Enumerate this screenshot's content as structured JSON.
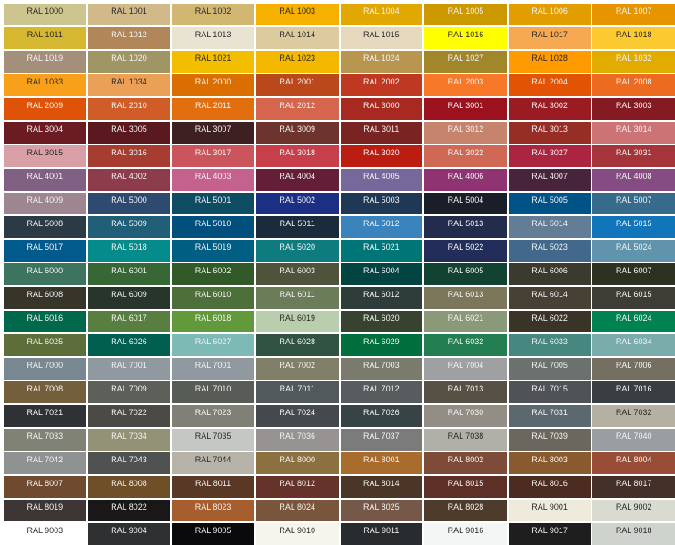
{
  "swatches": [
    {
      "label": "RAL 1000",
      "color": "#CCC58F",
      "text": "dark"
    },
    {
      "label": "RAL 1001",
      "color": "#D1B98A",
      "text": "dark"
    },
    {
      "label": "RAL 1002",
      "color": "#D2B773",
      "text": "dark"
    },
    {
      "label": "RAL 1003",
      "color": "#F6B000",
      "text": "dark"
    },
    {
      "label": "RAL 1004",
      "color": "#E0A800",
      "text": "light"
    },
    {
      "label": "RAL 1005",
      "color": "#CB9800",
      "text": "light"
    },
    {
      "label": "RAL 1006",
      "color": "#E29D00",
      "text": "light"
    },
    {
      "label": "RAL 1007",
      "color": "#E69500",
      "text": "light"
    },
    {
      "label": "RAL 1011",
      "color": "#D6B830",
      "text": "dark"
    },
    {
      "label": "RAL 1012",
      "color": "#B1875A",
      "text": "light"
    },
    {
      "label": "RAL 1013",
      "color": "#E9E3D2",
      "text": "dark"
    },
    {
      "label": "RAL 1014",
      "color": "#DDCBA0",
      "text": "dark"
    },
    {
      "label": "RAL 1015",
      "color": "#E6D9BD",
      "text": "dark"
    },
    {
      "label": "RAL 1016",
      "color": "#FFFF00",
      "text": "dark"
    },
    {
      "label": "RAL 1017",
      "color": "#F6A950",
      "text": "dark"
    },
    {
      "label": "RAL 1018",
      "color": "#FACA30",
      "text": "dark"
    },
    {
      "label": "RAL 1019",
      "color": "#A48F7A",
      "text": "light"
    },
    {
      "label": "RAL 1020",
      "color": "#A09565",
      "text": "light"
    },
    {
      "label": "RAL 1021",
      "color": "#F3BD00",
      "text": "dark"
    },
    {
      "label": "RAL 1023",
      "color": "#F4B800",
      "text": "dark"
    },
    {
      "label": "RAL 1024",
      "color": "#B89650",
      "text": "light"
    },
    {
      "label": "RAL 1027",
      "color": "#A1862A",
      "text": "light"
    },
    {
      "label": "RAL 1028",
      "color": "#FF9B00",
      "text": "dark"
    },
    {
      "label": "RAL 1032",
      "color": "#E1AB00",
      "text": "light"
    },
    {
      "label": "RAL 1033",
      "color": "#F9A01B",
      "text": "dark"
    },
    {
      "label": "RAL 1034",
      "color": "#EBA057",
      "text": "dark"
    },
    {
      "label": "RAL 2000",
      "color": "#DA6E00",
      "text": "light"
    },
    {
      "label": "RAL 2001",
      "color": "#BA481B",
      "text": "light"
    },
    {
      "label": "RAL 2002",
      "color": "#BF3922",
      "text": "light"
    },
    {
      "label": "RAL 2003",
      "color": "#F67828",
      "text": "light"
    },
    {
      "label": "RAL 2004",
      "color": "#E25303",
      "text": "light"
    },
    {
      "label": "RAL 2008",
      "color": "#ED6B21",
      "text": "light"
    },
    {
      "label": "RAL 2009",
      "color": "#DE5307",
      "text": "light"
    },
    {
      "label": "RAL 2010",
      "color": "#D05D28",
      "text": "light"
    },
    {
      "label": "RAL 2011",
      "color": "#E26E0E",
      "text": "light"
    },
    {
      "label": "RAL 2012",
      "color": "#D5654D",
      "text": "light"
    },
    {
      "label": "RAL 3000",
      "color": "#A72920",
      "text": "light"
    },
    {
      "label": "RAL 3001",
      "color": "#9B111E",
      "text": "light"
    },
    {
      "label": "RAL 3002",
      "color": "#9B1B23",
      "text": "light"
    },
    {
      "label": "RAL 3003",
      "color": "#861A22",
      "text": "light"
    },
    {
      "label": "RAL 3004",
      "color": "#6B1C23",
      "text": "light"
    },
    {
      "label": "RAL 3005",
      "color": "#59191F",
      "text": "light"
    },
    {
      "label": "RAL 3007",
      "color": "#3E2022",
      "text": "light"
    },
    {
      "label": "RAL 3009",
      "color": "#6D342D",
      "text": "light"
    },
    {
      "label": "RAL 3011",
      "color": "#792423",
      "text": "light"
    },
    {
      "label": "RAL 3012",
      "color": "#C6846D",
      "text": "light"
    },
    {
      "label": "RAL 3013",
      "color": "#972E25",
      "text": "light"
    },
    {
      "label": "RAL 3014",
      "color": "#CB7375",
      "text": "light"
    },
    {
      "label": "RAL 3015",
      "color": "#D8A0A6",
      "text": "dark"
    },
    {
      "label": "RAL 3016",
      "color": "#A63D30",
      "text": "light"
    },
    {
      "label": "RAL 3017",
      "color": "#CB555D",
      "text": "light"
    },
    {
      "label": "RAL 3018",
      "color": "#C73F4A",
      "text": "light"
    },
    {
      "label": "RAL 3020",
      "color": "#BB1E10",
      "text": "light"
    },
    {
      "label": "RAL 3022",
      "color": "#CF6955",
      "text": "light"
    },
    {
      "label": "RAL 3027",
      "color": "#AB2540",
      "text": "light"
    },
    {
      "label": "RAL 3031",
      "color": "#A6343B",
      "text": "light"
    },
    {
      "label": "RAL 4001",
      "color": "#816183",
      "text": "light"
    },
    {
      "label": "RAL 4002",
      "color": "#8D3C4B",
      "text": "light"
    },
    {
      "label": "RAL 4003",
      "color": "#C4618C",
      "text": "light"
    },
    {
      "label": "RAL 4004",
      "color": "#651E38",
      "text": "light"
    },
    {
      "label": "RAL 4005",
      "color": "#76689A",
      "text": "light"
    },
    {
      "label": "RAL 4006",
      "color": "#903373",
      "text": "light"
    },
    {
      "label": "RAL 4007",
      "color": "#47243C",
      "text": "light"
    },
    {
      "label": "RAL 4008",
      "color": "#844C82",
      "text": "light"
    },
    {
      "label": "RAL 4009",
      "color": "#9D8692",
      "text": "light"
    },
    {
      "label": "RAL 5000",
      "color": "#2F4A71",
      "text": "light"
    },
    {
      "label": "RAL 5001",
      "color": "#0E4C64",
      "text": "light"
    },
    {
      "label": "RAL 5002",
      "color": "#1B2F85",
      "text": "light"
    },
    {
      "label": "RAL 5003",
      "color": "#1F3855",
      "text": "light"
    },
    {
      "label": "RAL 5004",
      "color": "#191E28",
      "text": "light"
    },
    {
      "label": "RAL 5005",
      "color": "#005387",
      "text": "light"
    },
    {
      "label": "RAL 5007",
      "color": "#376B8C",
      "text": "light"
    },
    {
      "label": "RAL 5008",
      "color": "#2B3A44",
      "text": "light"
    },
    {
      "label": "RAL 5009",
      "color": "#215F78",
      "text": "light"
    },
    {
      "label": "RAL 5010",
      "color": "#004F7C",
      "text": "light"
    },
    {
      "label": "RAL 5011",
      "color": "#1A2B3C",
      "text": "light"
    },
    {
      "label": "RAL 5012",
      "color": "#3B83BD",
      "text": "light"
    },
    {
      "label": "RAL 5013",
      "color": "#232C4C",
      "text": "light"
    },
    {
      "label": "RAL 5014",
      "color": "#637D96",
      "text": "light"
    },
    {
      "label": "RAL 5015",
      "color": "#1175BB",
      "text": "light"
    },
    {
      "label": "RAL 5017",
      "color": "#005B8C",
      "text": "light"
    },
    {
      "label": "RAL 5018",
      "color": "#058B8C",
      "text": "light"
    },
    {
      "label": "RAL 5019",
      "color": "#005E83",
      "text": "light"
    },
    {
      "label": "RAL 5020",
      "color": "#0E7B7F",
      "text": "light"
    },
    {
      "label": "RAL 5021",
      "color": "#007577",
      "text": "light"
    },
    {
      "label": "RAL 5022",
      "color": "#222D5A",
      "text": "light"
    },
    {
      "label": "RAL 5023",
      "color": "#42698C",
      "text": "light"
    },
    {
      "label": "RAL 5024",
      "color": "#6093AC",
      "text": "light"
    },
    {
      "label": "RAL 6000",
      "color": "#3C7460",
      "text": "light"
    },
    {
      "label": "RAL 6001",
      "color": "#366735",
      "text": "light"
    },
    {
      "label": "RAL 6002",
      "color": "#325928",
      "text": "light"
    },
    {
      "label": "RAL 6003",
      "color": "#50533C",
      "text": "light"
    },
    {
      "label": "RAL 6004",
      "color": "#024442",
      "text": "light"
    },
    {
      "label": "RAL 6005",
      "color": "#114232",
      "text": "light"
    },
    {
      "label": "RAL 6006",
      "color": "#3C392E",
      "text": "light"
    },
    {
      "label": "RAL 6007",
      "color": "#2C3222",
      "text": "light"
    },
    {
      "label": "RAL 6008",
      "color": "#37342A",
      "text": "light"
    },
    {
      "label": "RAL 6009",
      "color": "#27352A",
      "text": "light"
    },
    {
      "label": "RAL 6010",
      "color": "#4D6F39",
      "text": "light"
    },
    {
      "label": "RAL 6011",
      "color": "#6B7C59",
      "text": "light"
    },
    {
      "label": "RAL 6012",
      "color": "#2F3D3A",
      "text": "light"
    },
    {
      "label": "RAL 6013",
      "color": "#7C765A",
      "text": "light"
    },
    {
      "label": "RAL 6014",
      "color": "#474135",
      "text": "light"
    },
    {
      "label": "RAL 6015",
      "color": "#3D3D36",
      "text": "light"
    },
    {
      "label": "RAL 6016",
      "color": "#00694C",
      "text": "light"
    },
    {
      "label": "RAL 6017",
      "color": "#587F40",
      "text": "light"
    },
    {
      "label": "RAL 6018",
      "color": "#61993B",
      "text": "light"
    },
    {
      "label": "RAL 6019",
      "color": "#B9CEAC",
      "text": "dark"
    },
    {
      "label": "RAL 6020",
      "color": "#37422F",
      "text": "light"
    },
    {
      "label": "RAL 6021",
      "color": "#8A9977",
      "text": "light"
    },
    {
      "label": "RAL 6022",
      "color": "#3A3327",
      "text": "light"
    },
    {
      "label": "RAL 6024",
      "color": "#008351",
      "text": "light"
    },
    {
      "label": "RAL 6025",
      "color": "#5E6E3B",
      "text": "light"
    },
    {
      "label": "RAL 6026",
      "color": "#005F4E",
      "text": "light"
    },
    {
      "label": "RAL 6027",
      "color": "#7EBAB5",
      "text": "light"
    },
    {
      "label": "RAL 6028",
      "color": "#315442",
      "text": "light"
    },
    {
      "label": "RAL 6029",
      "color": "#006F3D",
      "text": "light"
    },
    {
      "label": "RAL 6032",
      "color": "#237F52",
      "text": "light"
    },
    {
      "label": "RAL 6033",
      "color": "#46877F",
      "text": "light"
    },
    {
      "label": "RAL 6034",
      "color": "#7AACAC",
      "text": "light"
    },
    {
      "label": "RAL 7000",
      "color": "#798790",
      "text": "light"
    },
    {
      "label": "RAL 7001",
      "color": "#8F999F",
      "text": "light"
    },
    {
      "label": "RAL 7001",
      "color": "#8F999F",
      "text": "light"
    },
    {
      "label": "RAL 7002",
      "color": "#817F68",
      "text": "light"
    },
    {
      "label": "RAL 7003",
      "color": "#7A7B6D",
      "text": "light"
    },
    {
      "label": "RAL 7004",
      "color": "#9EA0A1",
      "text": "light"
    },
    {
      "label": "RAL 7005",
      "color": "#6B716F",
      "text": "light"
    },
    {
      "label": "RAL 7006",
      "color": "#756F61",
      "text": "light"
    },
    {
      "label": "RAL 7008",
      "color": "#745F3D",
      "text": "light"
    },
    {
      "label": "RAL 7009",
      "color": "#5D6058",
      "text": "light"
    },
    {
      "label": "RAL 7010",
      "color": "#585C56",
      "text": "light"
    },
    {
      "label": "RAL 7011",
      "color": "#52595D",
      "text": "light"
    },
    {
      "label": "RAL 7012",
      "color": "#575D5E",
      "text": "light"
    },
    {
      "label": "RAL 7013",
      "color": "#575044",
      "text": "light"
    },
    {
      "label": "RAL 7015",
      "color": "#4F5358",
      "text": "light"
    },
    {
      "label": "RAL 7016",
      "color": "#383E42",
      "text": "light"
    },
    {
      "label": "RAL 7021",
      "color": "#2F3234",
      "text": "light"
    },
    {
      "label": "RAL 7022",
      "color": "#4C4A44",
      "text": "light"
    },
    {
      "label": "RAL 7023",
      "color": "#808076",
      "text": "light"
    },
    {
      "label": "RAL 7024",
      "color": "#45494E",
      "text": "light"
    },
    {
      "label": "RAL 7026",
      "color": "#374345",
      "text": "light"
    },
    {
      "label": "RAL 7030",
      "color": "#928E85",
      "text": "light"
    },
    {
      "label": "RAL 7031",
      "color": "#5B686D",
      "text": "light"
    },
    {
      "label": "RAL 7032",
      "color": "#B5B0A1",
      "text": "dark"
    },
    {
      "label": "RAL 7033",
      "color": "#7F8274",
      "text": "light"
    },
    {
      "label": "RAL 7034",
      "color": "#939176",
      "text": "light"
    },
    {
      "label": "RAL 7035",
      "color": "#C5C7C4",
      "text": "dark"
    },
    {
      "label": "RAL 7036",
      "color": "#979392",
      "text": "light"
    },
    {
      "label": "RAL 7037",
      "color": "#7A7B7A",
      "text": "light"
    },
    {
      "label": "RAL 7038",
      "color": "#B0B0A9",
      "text": "dark"
    },
    {
      "label": "RAL 7039",
      "color": "#6B665E",
      "text": "light"
    },
    {
      "label": "RAL 7040",
      "color": "#989EA1",
      "text": "light"
    },
    {
      "label": "RAL 7042",
      "color": "#8E9291",
      "text": "light"
    },
    {
      "label": "RAL 7043",
      "color": "#4F5250",
      "text": "light"
    },
    {
      "label": "RAL 7044",
      "color": "#B7B3A8",
      "text": "dark"
    },
    {
      "label": "RAL 8000",
      "color": "#8D7040",
      "text": "light"
    },
    {
      "label": "RAL 8001",
      "color": "#A96C2C",
      "text": "light"
    },
    {
      "label": "RAL 8002",
      "color": "#7E4B38",
      "text": "light"
    },
    {
      "label": "RAL 8003",
      "color": "#8A5A2F",
      "text": "light"
    },
    {
      "label": "RAL 8004",
      "color": "#9A4D36",
      "text": "light"
    },
    {
      "label": "RAL 8007",
      "color": "#6F4A2F",
      "text": "light"
    },
    {
      "label": "RAL 8008",
      "color": "#6F4F28",
      "text": "light"
    },
    {
      "label": "RAL 8011",
      "color": "#5A3826",
      "text": "light"
    },
    {
      "label": "RAL 8012",
      "color": "#66332B",
      "text": "light"
    },
    {
      "label": "RAL 8014",
      "color": "#4A3526",
      "text": "light"
    },
    {
      "label": "RAL 8015",
      "color": "#5E2F26",
      "text": "light"
    },
    {
      "label": "RAL 8016",
      "color": "#4C2B20",
      "text": "light"
    },
    {
      "label": "RAL 8017",
      "color": "#442F29",
      "text": "light"
    },
    {
      "label": "RAL 8019",
      "color": "#3D3635",
      "text": "light"
    },
    {
      "label": "RAL 8022",
      "color": "#1A1718",
      "text": "light"
    },
    {
      "label": "RAL 8023",
      "color": "#A65E2F",
      "text": "light"
    },
    {
      "label": "RAL 8024",
      "color": "#79553C",
      "text": "light"
    },
    {
      "label": "RAL 8025",
      "color": "#755847",
      "text": "light"
    },
    {
      "label": "RAL 8028",
      "color": "#4E3B2B",
      "text": "light"
    },
    {
      "label": "RAL 9001",
      "color": "#EFEBDC",
      "text": "dark"
    },
    {
      "label": "RAL 9002",
      "color": "#DADBD0",
      "text": "dark"
    },
    {
      "label": "RAL 9003",
      "color": "#FFFFFF",
      "text": "dark"
    },
    {
      "label": "RAL 9004",
      "color": "#2E3032",
      "text": "light"
    },
    {
      "label": "RAL 9005",
      "color": "#0A0A0D",
      "text": "light"
    },
    {
      "label": "RAL 9010",
      "color": "#F5F5EE",
      "text": "dark"
    },
    {
      "label": "RAL 9011",
      "color": "#292C2F",
      "text": "light"
    },
    {
      "label": "RAL 9016",
      "color": "#F4F6F5",
      "text": "dark"
    },
    {
      "label": "RAL 9017",
      "color": "#1E1E1E",
      "text": "light"
    },
    {
      "label": "RAL 9018",
      "color": "#CFD3CD",
      "text": "dark"
    }
  ]
}
